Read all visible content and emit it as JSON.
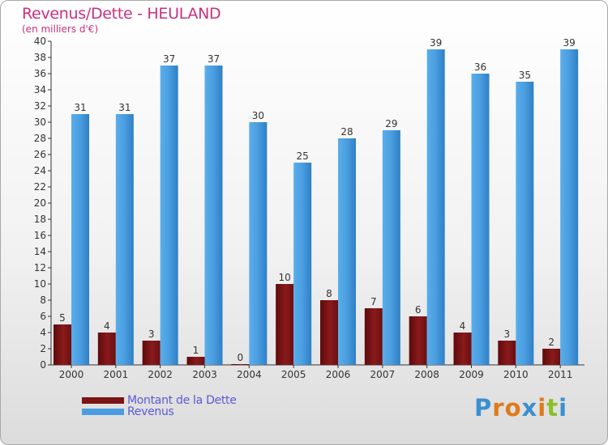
{
  "title": "Revenus/Dette - HEULAND",
  "subtitle": "(en milliers d'€)",
  "chart_data": {
    "type": "bar",
    "title": "Revenus/Dette - HEULAND",
    "ylabel": "(en milliers d'€)",
    "xlabel": "",
    "ylim": [
      0,
      40
    ],
    "ytick_step": 2,
    "grid": false,
    "legend_position": "bottom-left",
    "categories": [
      "2000",
      "2001",
      "2002",
      "2003",
      "2004",
      "2005",
      "2006",
      "2007",
      "2008",
      "2009",
      "2010",
      "2011"
    ],
    "series": [
      {
        "name": "Montant de la Dette",
        "color": "#7b1416",
        "values": [
          5,
          4,
          3,
          1,
          0,
          10,
          8,
          7,
          6,
          4,
          3,
          2
        ]
      },
      {
        "name": "Revenus",
        "color": "#4a9de0",
        "values": [
          31,
          31,
          37,
          37,
          30,
          25,
          28,
          29,
          39,
          36,
          35,
          39
        ]
      }
    ]
  },
  "legend": {
    "debt_label": "Montant de la Dette",
    "revenue_label": "Revenus"
  },
  "logo": {
    "letters": [
      "P",
      "r",
      "o",
      "x",
      "i",
      "t",
      "i"
    ],
    "colors": [
      "#3a8fd0",
      "#e07a1a",
      "#e07a1a",
      "#3a8fd0",
      "#e07a1a",
      "#8bbf2a",
      "#3a8fd0"
    ]
  }
}
